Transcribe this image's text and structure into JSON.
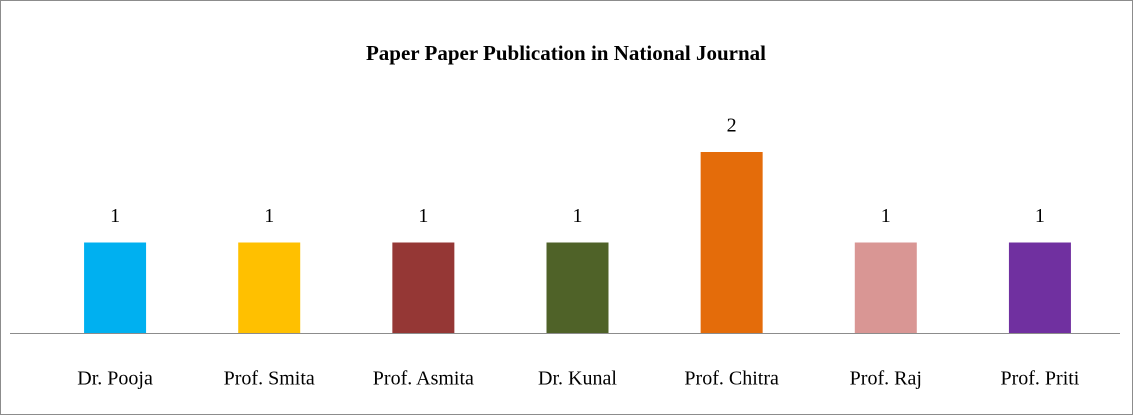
{
  "chart_data": {
    "type": "bar",
    "title": "Paper Paper Publication in National Journal",
    "categories": [
      "Dr. Pooja",
      "Prof. Smita",
      "Prof. Asmita",
      "Dr. Kunal",
      "Prof. Chitra",
      "Prof. Raj",
      "Prof. Priti"
    ],
    "values": [
      1,
      1,
      1,
      1,
      2,
      1,
      1
    ],
    "colors": [
      "#00b0f0",
      "#ffc000",
      "#953735",
      "#4f6228",
      "#e46c0a",
      "#d99694",
      "#7030a0"
    ],
    "ylim": [
      0,
      2
    ]
  }
}
